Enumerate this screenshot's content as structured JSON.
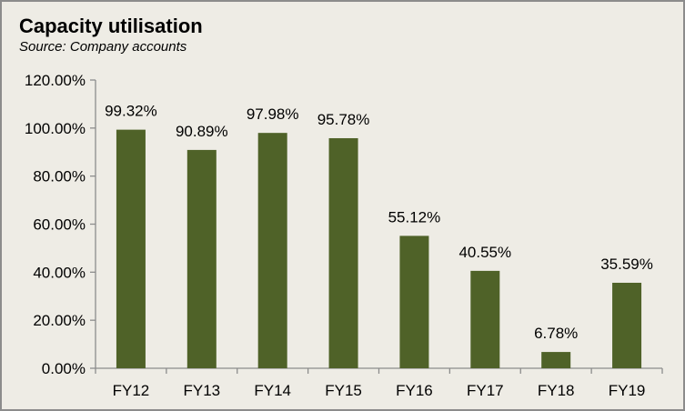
{
  "chart_data": {
    "type": "bar",
    "title": "Capacity utilisation",
    "subtitle": "Source: Company accounts",
    "categories": [
      "FY12",
      "FY13",
      "FY14",
      "FY15",
      "FY16",
      "FY17",
      "FY18",
      "FY19"
    ],
    "values": [
      99.32,
      90.89,
      97.98,
      95.78,
      55.12,
      40.55,
      6.78,
      35.59
    ],
    "data_labels": [
      "99.32%",
      "90.89%",
      "97.98%",
      "95.78%",
      "55.12%",
      "40.55%",
      "6.78%",
      "35.59%"
    ],
    "ylim": [
      0,
      120
    ],
    "yticks": [
      0,
      20,
      40,
      60,
      80,
      100,
      120
    ],
    "ytick_labels": [
      "0.00%",
      "20.00%",
      "40.00%",
      "60.00%",
      "80.00%",
      "100.00%",
      "120.00%"
    ],
    "xlabel": "",
    "ylabel": "",
    "grid": false,
    "legend": "none",
    "bar_color": "#4f6228",
    "background_color": "#eeece5"
  }
}
